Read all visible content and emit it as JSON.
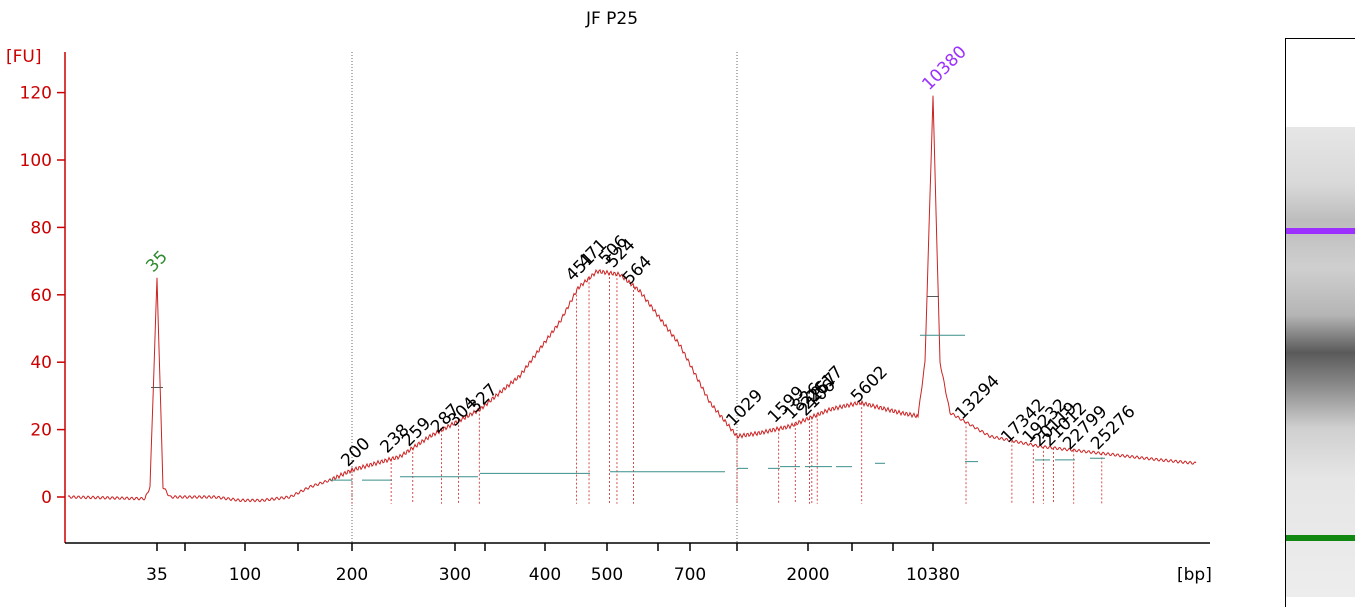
{
  "chart_data": {
    "type": "line",
    "title": "JF P25",
    "ylabel": "[FU]",
    "xlabel": "[bp]",
    "ylim": [
      -12,
      125
    ],
    "y_ticks": [
      0,
      20,
      40,
      60,
      80,
      100,
      120
    ],
    "x_tick_labels": [
      "35",
      "100",
      "200",
      "300",
      "400",
      "500",
      "700",
      "2000",
      "10380"
    ],
    "x_axis_note": "non-linear (sizing ladder) bp axis",
    "grid": false,
    "markers": [
      {
        "label": "35",
        "bp": 35,
        "fu": 65,
        "color": "#2e8b2e"
      },
      {
        "label": "10380",
        "bp": 10380,
        "fu": 119,
        "color": "#9b30ff"
      }
    ],
    "peaks": [
      {
        "label": "200",
        "bp": 200,
        "fu": 7
      },
      {
        "label": "238",
        "bp": 238,
        "fu": 11
      },
      {
        "label": "259",
        "bp": 259,
        "fu": 13
      },
      {
        "label": "287",
        "bp": 287,
        "fu": 17
      },
      {
        "label": "304",
        "bp": 304,
        "fu": 19
      },
      {
        "label": "327",
        "bp": 327,
        "fu": 23
      },
      {
        "label": "451",
        "bp": 451,
        "fu": 62
      },
      {
        "label": "471",
        "bp": 471,
        "fu": 66
      },
      {
        "label": "506",
        "bp": 506,
        "fu": 67
      },
      {
        "label": "524",
        "bp": 524,
        "fu": 66
      },
      {
        "label": "564",
        "bp": 564,
        "fu": 61
      },
      {
        "label": "1029",
        "bp": 1029,
        "fu": 19
      },
      {
        "label": "1599",
        "bp": 1599,
        "fu": 20
      },
      {
        "label": "1826",
        "bp": 1826,
        "fu": 21
      },
      {
        "label": "2106",
        "bp": 2106,
        "fu": 22
      },
      {
        "label": "2257",
        "bp": 2257,
        "fu": 24
      },
      {
        "label": "2617",
        "bp": 2617,
        "fu": 26
      },
      {
        "label": "5602",
        "bp": 5602,
        "fu": 26
      },
      {
        "label": "13294",
        "bp": 13294,
        "fu": 21
      },
      {
        "label": "17342",
        "bp": 17342,
        "fu": 14
      },
      {
        "label": "19232",
        "bp": 19232,
        "fu": 14
      },
      {
        "label": "20119",
        "bp": 20119,
        "fu": 13
      },
      {
        "label": "21012",
        "bp": 21012,
        "fu": 13
      },
      {
        "label": "22799",
        "bp": 22799,
        "fu": 12
      },
      {
        "label": "25276",
        "bp": 25276,
        "fu": 12
      }
    ],
    "trace_color": "#cc2222",
    "axis_color": "#cc0000",
    "gel_bands": [
      {
        "name": "upper-marker",
        "color": "#9b30ff"
      },
      {
        "name": "lower-marker",
        "color": "#118811"
      }
    ]
  }
}
